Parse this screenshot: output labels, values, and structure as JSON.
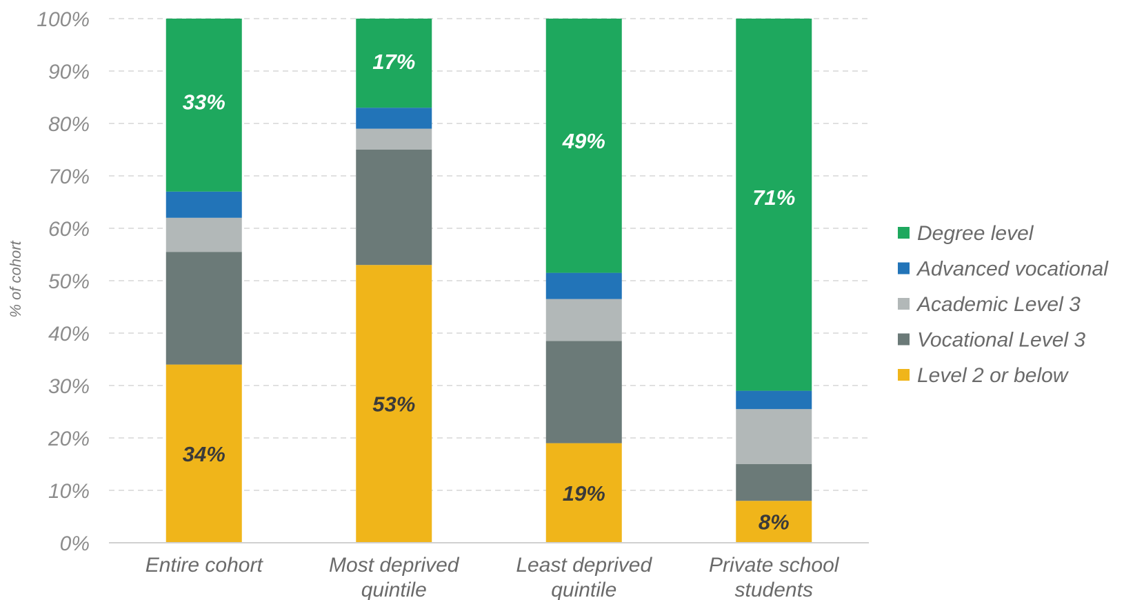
{
  "chart_data": {
    "type": "bar",
    "stacked": true,
    "ylabel": "% of cohort",
    "ylim": [
      0,
      100
    ],
    "yticks": [
      "0%",
      "10%",
      "20%",
      "30%",
      "40%",
      "50%",
      "60%",
      "70%",
      "80%",
      "90%",
      "100%"
    ],
    "grid": true,
    "legend_position": "right",
    "categories": [
      [
        "Entire cohort"
      ],
      [
        "Most deprived",
        "quintile"
      ],
      [
        "Least deprived",
        "quintile"
      ],
      [
        "Private school",
        "students"
      ]
    ],
    "series": [
      {
        "name": "Level 2 or below",
        "color": "#F0B51A",
        "values": [
          34,
          53,
          19,
          8
        ],
        "data_labels": [
          "34%",
          "53%",
          "19%",
          "8%"
        ],
        "label_color": "#3a3a3a"
      },
      {
        "name": "Vocational Level 3",
        "color": "#6B7A78",
        "values": [
          21.5,
          22,
          19.5,
          7
        ]
      },
      {
        "name": "Academic Level 3",
        "color": "#B2B8B8",
        "values": [
          6.5,
          4,
          8,
          10.5
        ]
      },
      {
        "name": "Advanced vocational",
        "color": "#2274B8",
        "values": [
          5,
          4,
          5,
          3.5
        ]
      },
      {
        "name": "Degree level",
        "color": "#1EA85E",
        "values": [
          33,
          17,
          48.5,
          71
        ],
        "data_labels": [
          "33%",
          "17%",
          "49%",
          "71%"
        ],
        "label_color": "#ffffff"
      }
    ],
    "legend_order": [
      "Degree level",
      "Advanced vocational",
      "Academic Level 3",
      "Vocational Level 3",
      "Level 2 or below"
    ]
  }
}
